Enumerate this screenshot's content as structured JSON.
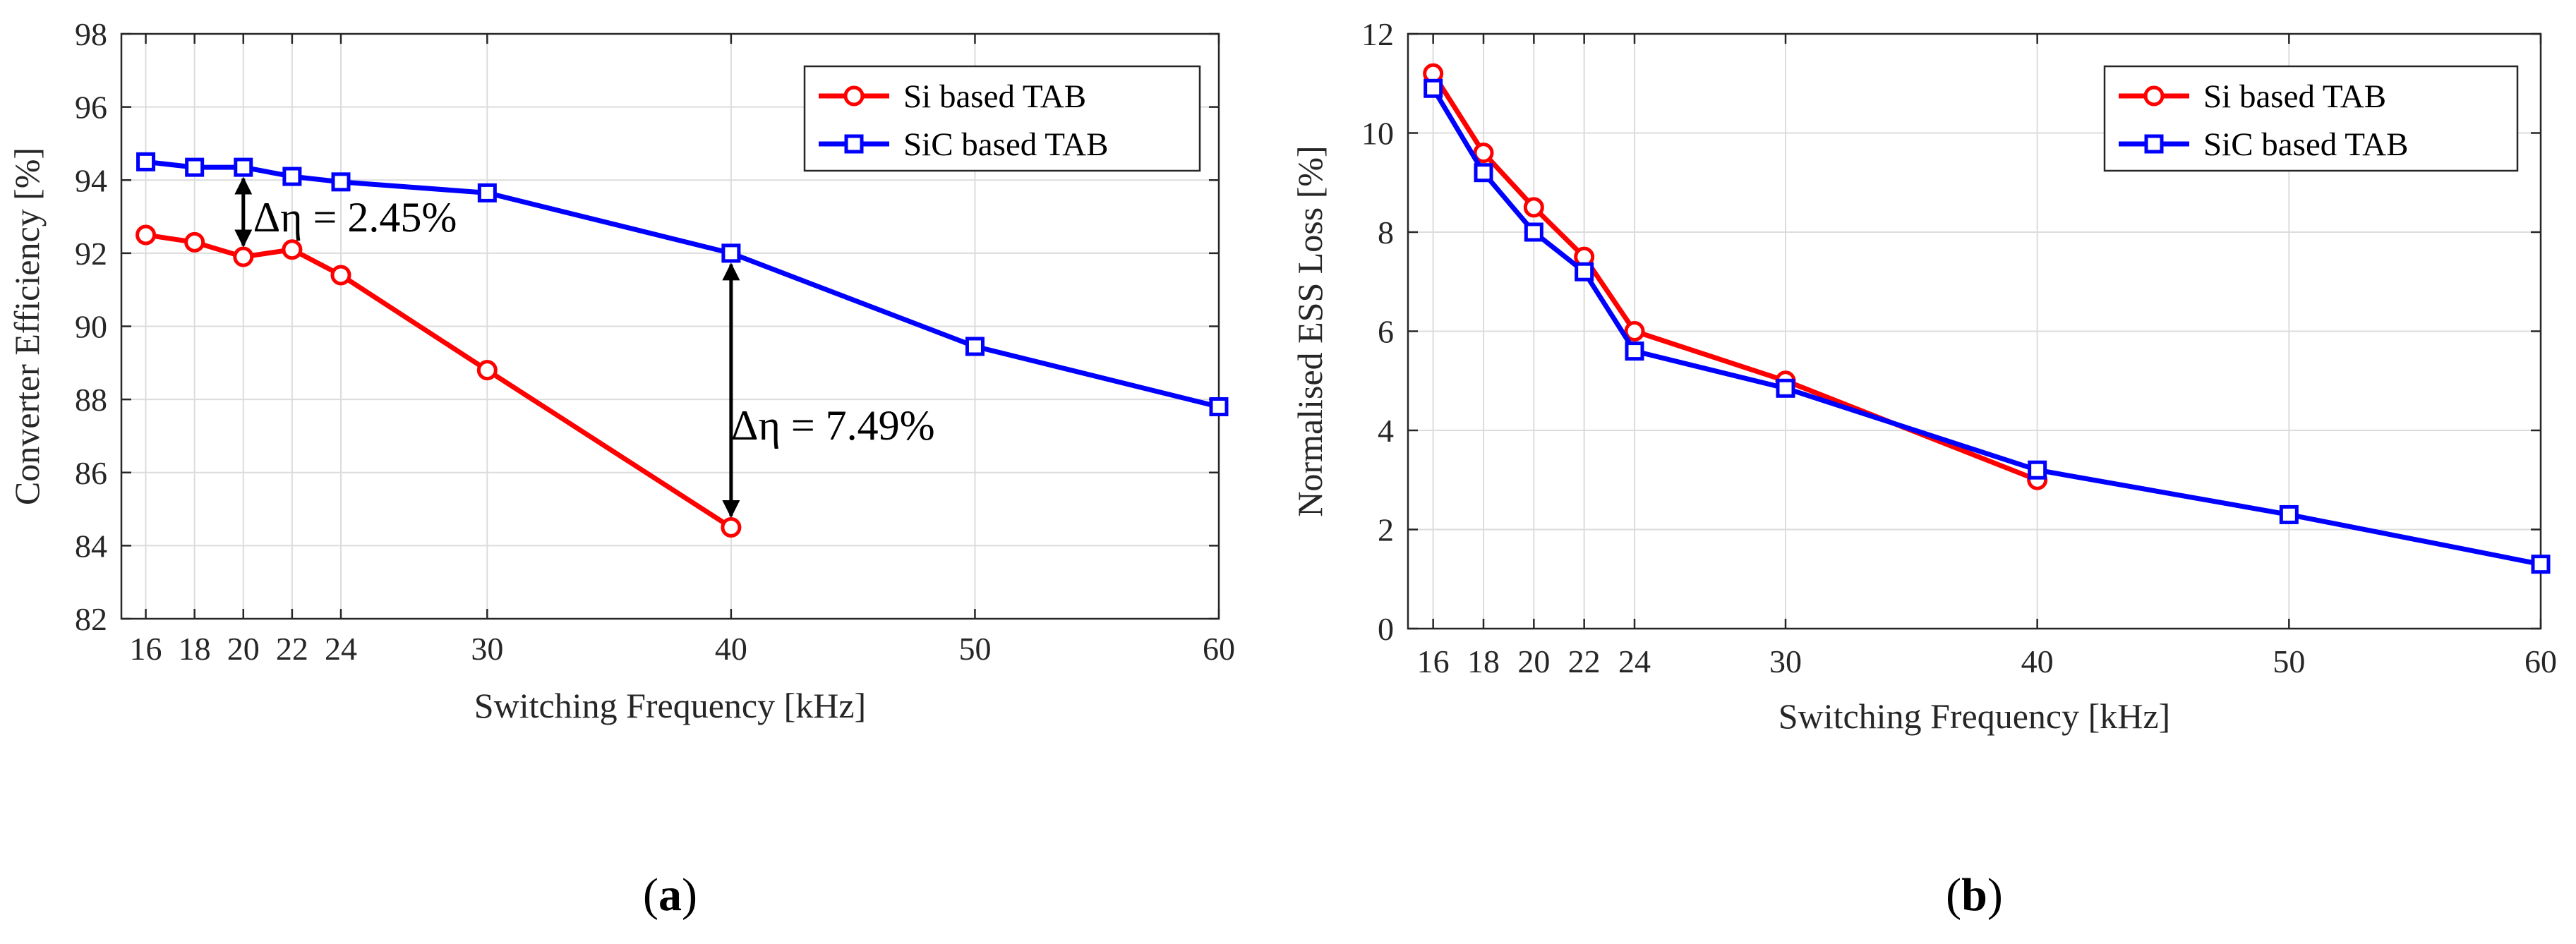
{
  "chart_data": [
    {
      "type": "line",
      "panel_label_parts": [
        "(",
        "a",
        ")"
      ],
      "x": [
        16,
        18,
        20,
        22,
        24,
        30,
        40,
        50,
        60
      ],
      "x_tick_labels": [
        "16",
        "18",
        "20",
        "22",
        "24",
        "30",
        "40",
        "50",
        "60"
      ],
      "xlim": [
        15,
        60
      ],
      "ylim": [
        82,
        98
      ],
      "y_ticks": [
        82,
        84,
        86,
        88,
        90,
        92,
        94,
        96,
        98
      ],
      "xlabel": "Switching Frequency [kHz]",
      "ylabel": "Converter Efficiency [%]",
      "grid": true,
      "legend_position": "top-right",
      "series": [
        {
          "name": "Si based TAB",
          "color": "#ff0000",
          "marker": "circle",
          "x": [
            16,
            18,
            20,
            22,
            24,
            30,
            40
          ],
          "values": [
            92.5,
            92.3,
            91.9,
            92.1,
            91.4,
            88.8,
            84.5
          ]
        },
        {
          "name": "SiC based TAB",
          "color": "#0000ff",
          "marker": "square",
          "x": [
            16,
            18,
            20,
            22,
            24,
            30,
            40,
            50,
            60
          ],
          "values": [
            94.5,
            94.35,
            94.35,
            94.1,
            93.95,
            93.65,
            92.0,
            89.45,
            87.8
          ]
        }
      ],
      "annotations": [
        {
          "text": "Δη = 2.45%",
          "x": 20,
          "from": 94.35,
          "to": 91.9,
          "label_x": 20.4,
          "label_y": 92.6
        },
        {
          "text": "Δη = 7.49%",
          "x": 40,
          "from": 92.0,
          "to": 84.5,
          "label_x": 40,
          "label_y": 86.9
        }
      ]
    },
    {
      "type": "line",
      "panel_label_parts": [
        "(",
        "b",
        ")"
      ],
      "x": [
        16,
        18,
        20,
        22,
        24,
        30,
        40,
        50,
        60
      ],
      "x_tick_labels": [
        "16",
        "18",
        "20",
        "22",
        "24",
        "30",
        "40",
        "50",
        "60"
      ],
      "xlim": [
        15,
        60
      ],
      "ylim": [
        0,
        12
      ],
      "y_ticks": [
        0,
        2,
        4,
        6,
        8,
        10,
        12
      ],
      "xlabel": "Switching Frequency [kHz]",
      "ylabel": "Normalised ESS Loss [%]",
      "grid": true,
      "legend_position": "top-right",
      "series": [
        {
          "name": "Si based TAB",
          "color": "#ff0000",
          "marker": "circle",
          "x": [
            16,
            18,
            20,
            22,
            24,
            30,
            40
          ],
          "values": [
            11.2,
            9.6,
            8.5,
            7.5,
            6.0,
            5.0,
            3.0
          ]
        },
        {
          "name": "SiC based TAB",
          "color": "#0000ff",
          "marker": "square",
          "x": [
            16,
            18,
            20,
            22,
            24,
            30,
            40,
            50,
            60
          ],
          "values": [
            10.9,
            9.2,
            8.0,
            7.2,
            5.6,
            4.85,
            3.2,
            2.3,
            1.3
          ]
        }
      ],
      "annotations": []
    }
  ]
}
